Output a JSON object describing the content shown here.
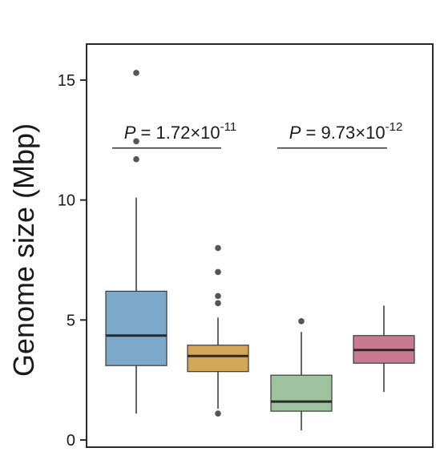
{
  "chart_data": {
    "type": "box",
    "ylabel": "Genome size (Mbp)",
    "xlabel": "",
    "ylim": [
      -0.3,
      16.5
    ],
    "yticks": [
      0,
      5,
      10,
      15
    ],
    "yticks_labels": [
      "0",
      "5",
      "10",
      "15"
    ],
    "grid": false,
    "legend": "none",
    "boxes": [
      {
        "color": "#7ea8c9",
        "whisker_low": 1.1,
        "q1": 3.1,
        "median": 4.35,
        "q3": 6.2,
        "whisker_high": 10.1,
        "outliers": [
          11.7,
          12.45,
          15.3
        ]
      },
      {
        "color": "#d4a658",
        "whisker_low": 1.3,
        "q1": 2.85,
        "median": 3.5,
        "q3": 3.95,
        "whisker_high": 5.1,
        "outliers": [
          1.1,
          5.7,
          6.0,
          7.0,
          8.0
        ]
      },
      {
        "color": "#9fc29f",
        "whisker_low": 0.4,
        "q1": 1.2,
        "median": 1.6,
        "q3": 2.7,
        "whisker_high": 4.5,
        "outliers": [
          4.95
        ]
      },
      {
        "color": "#c97a93",
        "whisker_low": 2.0,
        "q1": 3.2,
        "median": 3.75,
        "q3": 4.35,
        "whisker_high": 5.6,
        "outliers": []
      }
    ],
    "annotations": [
      {
        "prefix": "P",
        "text": " = 1.72×10",
        "exponent": "-11",
        "from_box": 0,
        "to_box": 1,
        "y": 12.9
      },
      {
        "prefix": "P",
        "text": " = 9.73×10",
        "exponent": "-12",
        "from_box": 2,
        "to_box": 3,
        "y": 12.9
      }
    ]
  }
}
